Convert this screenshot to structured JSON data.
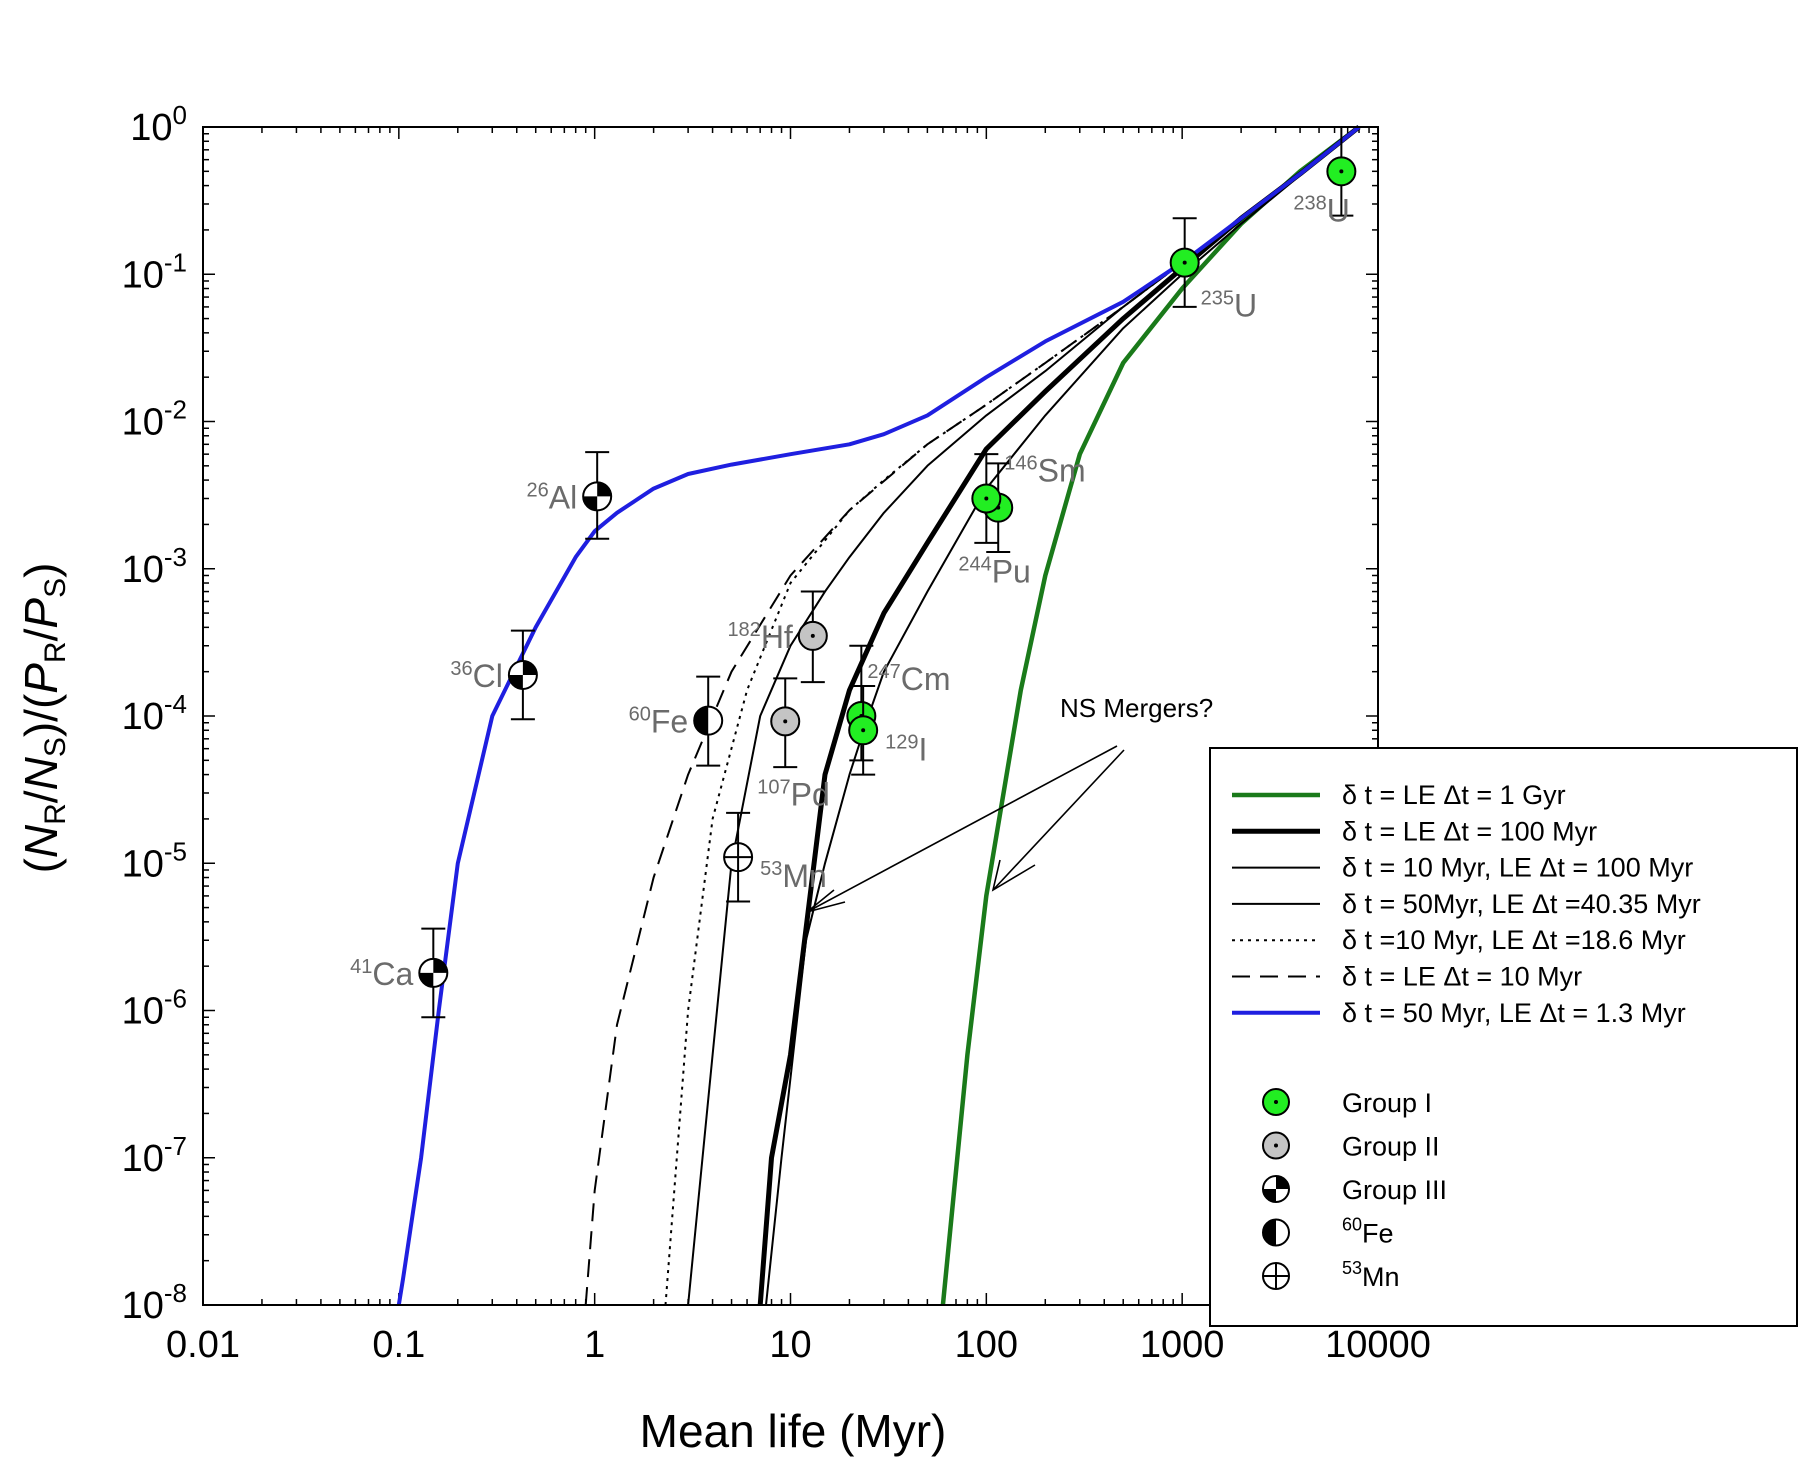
{
  "chart_data": {
    "type": "line",
    "xscale": "log",
    "yscale": "log",
    "xlim": [
      0.01,
      10000
    ],
    "ylim": [
      1e-08,
      1
    ],
    "xlabel": "Mean life (Myr)",
    "ylabel_parts": [
      "(",
      "N",
      "R",
      "/",
      "N",
      "S",
      ")/(",
      "P",
      "R",
      "/",
      "P",
      "S",
      ")"
    ],
    "xticks": [
      {
        "value": 0.01,
        "label": "0.01"
      },
      {
        "value": 0.1,
        "label": "0.1"
      },
      {
        "value": 1,
        "label": "1"
      },
      {
        "value": 10,
        "label": "10"
      },
      {
        "value": 100,
        "label": "100"
      },
      {
        "value": 1000,
        "label": "1000"
      },
      {
        "value": 10000,
        "label": "10000"
      }
    ],
    "yticks": [
      {
        "value": 1,
        "base": "10",
        "exp": "0"
      },
      {
        "value": 0.1,
        "base": "10",
        "exp": "-1"
      },
      {
        "value": 0.01,
        "base": "10",
        "exp": "-2"
      },
      {
        "value": 0.001,
        "base": "10",
        "exp": "-3"
      },
      {
        "value": 0.0001,
        "base": "10",
        "exp": "-4"
      },
      {
        "value": 1e-05,
        "base": "10",
        "exp": "-5"
      },
      {
        "value": 1e-06,
        "base": "10",
        "exp": "-6"
      },
      {
        "value": 1e-07,
        "base": "10",
        "exp": "-7"
      },
      {
        "value": 1e-08,
        "base": "10",
        "exp": "-8"
      }
    ],
    "series": [
      {
        "name": "δ t = LE Δt = 1 Gyr",
        "color": "#1a7a1a",
        "width": 4.5,
        "dash": "",
        "x": [
          60,
          80,
          100,
          150,
          200,
          300,
          500,
          1000,
          2000,
          4000,
          8000
        ],
        "y": [
          1e-08,
          5e-07,
          6e-06,
          0.00015,
          0.0009,
          0.006,
          0.025,
          0.08,
          0.22,
          0.5,
          1
        ]
      },
      {
        "name": "δ t = LE Δt = 100 Myr",
        "color": "#000000",
        "width": 5,
        "dash": "",
        "x": [
          7,
          8,
          10,
          15,
          20,
          30,
          50,
          100,
          200,
          500,
          1000,
          2000,
          4000,
          8000
        ],
        "y": [
          1e-08,
          1e-07,
          5e-07,
          4e-05,
          0.00015,
          0.0005,
          0.0015,
          0.0065,
          0.016,
          0.05,
          0.11,
          0.24,
          0.48,
          1
        ]
      },
      {
        "name": "δ t = 10 Myr, LE Δt = 100 Myr",
        "color": "#000000",
        "width": 2,
        "dash": "",
        "x": [
          3,
          4,
          5,
          7,
          10,
          15,
          20,
          30,
          50,
          100,
          200,
          500,
          1000,
          2000,
          8000
        ],
        "y": [
          1e-08,
          5e-07,
          1e-05,
          0.0001,
          0.0003,
          0.0007,
          0.0012,
          0.0024,
          0.005,
          0.011,
          0.022,
          0.06,
          0.12,
          0.24,
          1
        ]
      },
      {
        "name": "δ t = 50Myr, LE Δt =40.35 Myr",
        "color": "#000000",
        "width": 2,
        "dash": "",
        "x": [
          7.5,
          9,
          12,
          15,
          20,
          25,
          30,
          50,
          100,
          200,
          500,
          1000,
          2000,
          8000
        ],
        "y": [
          1e-08,
          1e-07,
          3e-06,
          1e-05,
          4e-05,
          0.0001,
          0.0002,
          0.0007,
          0.0035,
          0.011,
          0.043,
          0.1,
          0.22,
          1
        ]
      },
      {
        "name": "δ t =10 Myr, LE Δt =18.6 Myr",
        "color": "#000000",
        "width": 2,
        "dash": "3,5",
        "x": [
          2.3,
          3,
          4,
          6,
          10,
          20,
          30,
          50,
          100,
          200,
          500,
          1000,
          2000,
          8000
        ],
        "y": [
          1e-08,
          1e-06,
          2e-05,
          0.00015,
          0.0008,
          0.0025,
          0.004,
          0.007,
          0.013,
          0.025,
          0.06,
          0.12,
          0.24,
          1
        ]
      },
      {
        "name": "δ t = LE Δt = 10 Myr",
        "color": "#000000",
        "width": 2,
        "dash": "18,10",
        "x": [
          0.9,
          1,
          1.3,
          2,
          3,
          5,
          10,
          20,
          50,
          100,
          200,
          500,
          1000,
          2000,
          8000
        ],
        "y": [
          1e-08,
          6e-08,
          8e-07,
          8e-06,
          4e-05,
          0.0002,
          0.0009,
          0.0025,
          0.007,
          0.013,
          0.025,
          0.06,
          0.12,
          0.24,
          1
        ]
      },
      {
        "name": "δ t = 50 Myr, LE Δt = 1.3 Myr",
        "color": "#1f1fe0",
        "width": 4,
        "dash": "",
        "x": [
          0.1,
          0.105,
          0.13,
          0.16,
          0.2,
          0.3,
          0.5,
          0.8,
          1,
          1.3,
          2,
          3,
          5,
          10,
          20,
          30,
          50,
          100,
          200,
          500,
          1000,
          2000,
          4000,
          8000
        ],
        "y": [
          1e-08,
          1.5e-08,
          1e-07,
          1e-06,
          1e-05,
          0.0001,
          0.0004,
          0.0012,
          0.0018,
          0.0024,
          0.0035,
          0.0044,
          0.0051,
          0.006,
          0.007,
          0.0082,
          0.011,
          0.02,
          0.035,
          0.065,
          0.12,
          0.24,
          0.48,
          1
        ]
      }
    ],
    "points": [
      {
        "label_mass": "238",
        "label_el": "U",
        "x": 6500,
        "y": 0.5,
        "ylow": 0.25,
        "yhigh": 1.0,
        "group": "I",
        "label_pos": "below-left"
      },
      {
        "label_mass": "235",
        "label_el": "U",
        "x": 1030,
        "y": 0.12,
        "ylow": 0.06,
        "yhigh": 0.24,
        "group": "I",
        "label_pos": "below-right"
      },
      {
        "label_mass": "146",
        "label_el": "Sm",
        "x": 115,
        "y": 0.0026,
        "ylow": 0.0013,
        "yhigh": 0.0052,
        "group": "I",
        "label_pos": "above-right"
      },
      {
        "label_mass": "244",
        "label_el": "Pu",
        "x": 100,
        "y": 0.003,
        "ylow": 0.0015,
        "yhigh": 0.006,
        "group": "I",
        "label_pos": "below"
      },
      {
        "label_mass": "247",
        "label_el": "Cm",
        "x": 23,
        "y": 0.0001,
        "ylow": 5e-05,
        "yhigh": 0.0003,
        "group": "I",
        "label_pos": "above-right"
      },
      {
        "label_mass": "129",
        "label_el": "I",
        "x": 23.5,
        "y": 8e-05,
        "ylow": 4e-05,
        "yhigh": 0.00016,
        "group": "I",
        "label_pos": "right"
      },
      {
        "label_mass": "182",
        "label_el": "Hf",
        "x": 13,
        "y": 0.00035,
        "ylow": 0.00017,
        "yhigh": 0.0007,
        "group": "II",
        "label_pos": "left"
      },
      {
        "label_mass": "107",
        "label_el": "Pd",
        "x": 9.4,
        "y": 9.2e-05,
        "ylow": 4.5e-05,
        "yhigh": 0.00018,
        "group": "II",
        "label_pos": "below"
      },
      {
        "label_mass": "26",
        "label_el": "Al",
        "x": 1.03,
        "y": 0.0031,
        "ylow": 0.0016,
        "yhigh": 0.0062,
        "group": "III",
        "label_pos": "left"
      },
      {
        "label_mass": "36",
        "label_el": "Cl",
        "x": 0.43,
        "y": 0.00019,
        "ylow": 9.5e-05,
        "yhigh": 0.00038,
        "group": "III",
        "label_pos": "left"
      },
      {
        "label_mass": "41",
        "label_el": "Ca",
        "x": 0.15,
        "y": 1.8e-06,
        "ylow": 9e-07,
        "yhigh": 3.6e-06,
        "group": "III",
        "label_pos": "left"
      },
      {
        "label_mass": "60",
        "label_el": "Fe",
        "x": 3.8,
        "y": 9.3e-05,
        "ylow": 4.6e-05,
        "yhigh": 0.000185,
        "group": "Fe60",
        "label_pos": "left"
      },
      {
        "label_mass": "53",
        "label_el": "Mn",
        "x": 5.4,
        "y": 1.1e-05,
        "ylow": 5.5e-06,
        "yhigh": 2.2e-05,
        "group": "Mn53",
        "label_pos": "right"
      }
    ],
    "annotation": {
      "text": "NS Mergers?"
    },
    "legend": {
      "location": "lower-right",
      "point_entries": [
        {
          "mass": "",
          "text": "Group I",
          "group": "I"
        },
        {
          "mass": "",
          "text": "Group II",
          "group": "II"
        },
        {
          "mass": "",
          "text": "Group III",
          "group": "III"
        },
        {
          "mass": "60",
          "text": "Fe",
          "group": "Fe60"
        },
        {
          "mass": "53",
          "text": "Mn",
          "group": "Mn53"
        }
      ]
    },
    "colors": {
      "group1": "#22ee22",
      "group2": "#c4c4c4",
      "label_gray": "#6b6b6b"
    }
  }
}
